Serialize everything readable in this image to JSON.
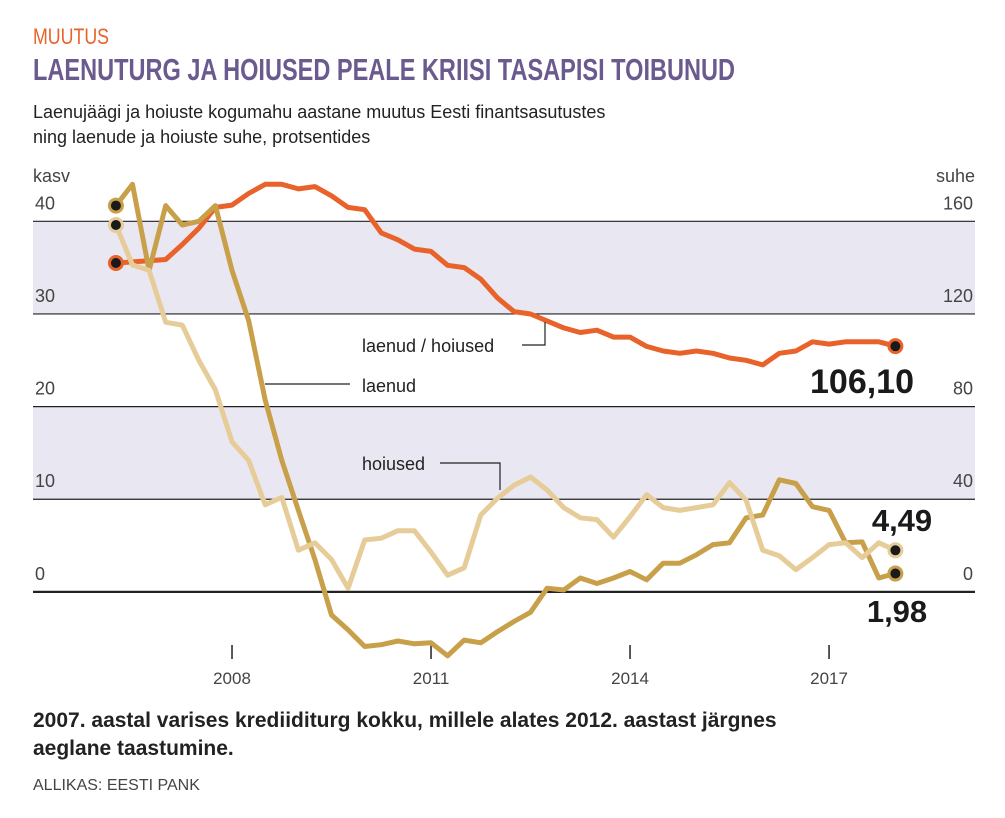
{
  "chart_data": {
    "type": "line",
    "kicker": "MUUTUS",
    "title": "LAENUTURG JA HOIUSED PEALE KRIISI TASAPISI TOIBUNUD",
    "subtitle": [
      "Laenujäägi ja hoiuste kogumahu aastane muutus Eesti finantsasutustes",
      "ning laenude ja hoiuste suhe, protsentides"
    ],
    "ylabel": "kasv",
    "y2label": "suhe",
    "caption": [
      "2007. aastal varises krediiditurg kokku, millele alates 2012. aastast järgnes",
      "aeglane taastumine."
    ],
    "source": "ALLIKAS: EESTI PANK",
    "x": [
      2006.25,
      2006.5,
      2006.75,
      2007,
      2007.25,
      2007.5,
      2007.75,
      2008,
      2008.25,
      2008.5,
      2008.75,
      2009,
      2009.25,
      2009.5,
      2009.75,
      2010,
      2010.25,
      2010.5,
      2010.75,
      2011,
      2011.25,
      2011.5,
      2011.75,
      2012,
      2012.25,
      2012.5,
      2012.75,
      2013,
      2013.25,
      2013.5,
      2013.75,
      2014,
      2014.25,
      2014.5,
      2014.75,
      2015,
      2015.25,
      2015.5,
      2015.75,
      2016,
      2016.25,
      2016.5,
      2016.75,
      2017,
      2017.25,
      2017.5,
      2017.75,
      2018
    ],
    "xlim": [
      2005,
      2019.2
    ],
    "xticks": [
      2008,
      2011,
      2014,
      2017
    ],
    "ylim": [
      -8,
      45
    ],
    "yticks": [
      0,
      10,
      20,
      30,
      40
    ],
    "y2lim": [
      -32,
      180
    ],
    "y2ticks": [
      0,
      40,
      80,
      120,
      160
    ],
    "bands": [
      [
        10,
        20
      ],
      [
        30,
        40
      ]
    ],
    "band_color": "#e9e7f1",
    "series": [
      {
        "name": "laenud / hoiused",
        "color": "#e8622a",
        "axis": "y2",
        "values": [
          142,
          142.5,
          143,
          143.5,
          150,
          157,
          166,
          167,
          172,
          176,
          176,
          174,
          175,
          171,
          166,
          165,
          155,
          152,
          148,
          147,
          141,
          140,
          135,
          127,
          121,
          120,
          117,
          114,
          112,
          113,
          110,
          110,
          106,
          104,
          103,
          104,
          103,
          101,
          100,
          98,
          103,
          104,
          108,
          107,
          108,
          108,
          108,
          106.1
        ],
        "value_labels": [
          null,
          null,
          null,
          null,
          null,
          null,
          null,
          null,
          null,
          null,
          null,
          null,
          null,
          null,
          null,
          null,
          null,
          null,
          null,
          null,
          null,
          null,
          null,
          null,
          null,
          null,
          null,
          null,
          null,
          null,
          null,
          null,
          null,
          null,
          null,
          null,
          null,
          null,
          null,
          null,
          null,
          null,
          null,
          null,
          null,
          null,
          null,
          "106,10"
        ]
      },
      {
        "name": "laenud",
        "color": "#c9a04a",
        "values": [
          41.7,
          44,
          34.7,
          41.7,
          39.6,
          40,
          41.7,
          34.7,
          29.3,
          20.7,
          14.2,
          8.8,
          3.5,
          -2.5,
          -4.1,
          -5.9,
          -5.7,
          -5.3,
          -5.6,
          -5.5,
          -6.9,
          -5.2,
          -5.5,
          -4.3,
          -3.2,
          -2.2,
          0.4,
          0.2,
          1.5,
          0.9,
          1.5,
          2.2,
          1.3,
          3.1,
          3.1,
          4.0,
          5.1,
          5.3,
          8.0,
          8.3,
          12.1,
          11.7,
          9.2,
          8.8,
          5.3,
          5.4,
          1.5,
          1.98
        ],
        "value_labels": [
          null,
          null,
          null,
          null,
          null,
          null,
          null,
          null,
          null,
          null,
          null,
          null,
          null,
          null,
          null,
          null,
          null,
          null,
          null,
          null,
          null,
          null,
          null,
          null,
          null,
          null,
          null,
          null,
          null,
          null,
          null,
          null,
          null,
          null,
          null,
          null,
          null,
          null,
          null,
          null,
          null,
          null,
          null,
          null,
          null,
          null,
          null,
          "1,98"
        ]
      },
      {
        "name": "hoiused",
        "color": "#e6cc98",
        "values": [
          39.6,
          35.3,
          34.7,
          29.1,
          28.8,
          25,
          21.8,
          16.2,
          14.2,
          9.4,
          10.2,
          4.5,
          5.3,
          3.5,
          0.4,
          5.6,
          5.8,
          6.6,
          6.6,
          4.3,
          1.8,
          2.6,
          8.3,
          10.1,
          11.5,
          12.4,
          11.0,
          9.1,
          8.0,
          7.8,
          5.9,
          8.1,
          10.5,
          9.1,
          8.8,
          9.1,
          9.4,
          11.8,
          9.9,
          4.5,
          3.9,
          2.4,
          3.7,
          5.1,
          5.3,
          3.7,
          5.3,
          4.49
        ],
        "value_labels": [
          null,
          null,
          null,
          null,
          null,
          null,
          null,
          null,
          null,
          null,
          null,
          null,
          null,
          null,
          null,
          null,
          null,
          null,
          null,
          null,
          null,
          null,
          null,
          null,
          null,
          null,
          null,
          null,
          null,
          null,
          null,
          null,
          null,
          null,
          null,
          null,
          null,
          null,
          null,
          null,
          null,
          null,
          null,
          null,
          null,
          null,
          null,
          "4,49"
        ]
      }
    ]
  }
}
